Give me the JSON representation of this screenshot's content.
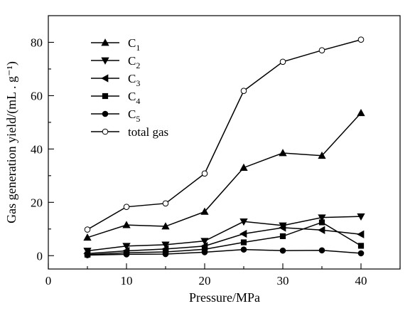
{
  "chart_data": {
    "type": "line",
    "xlabel": "Pressure/MPa",
    "ylabel": "Gas generation yield/(mL . g⁻¹)",
    "xlim": [
      0,
      45
    ],
    "ylim": [
      -5,
      90
    ],
    "xticks": [
      0,
      10,
      20,
      30,
      40
    ],
    "yticks": [
      0,
      20,
      40,
      60,
      80
    ],
    "grid": false,
    "legend_position": "top-left",
    "x": [
      5,
      10,
      15,
      20,
      25,
      30,
      35,
      40
    ],
    "series": [
      {
        "name": "C",
        "sub": "1",
        "marker": "triangle-up",
        "values": [
          6.8,
          11.5,
          11.0,
          16.5,
          33.0,
          38.5,
          37.5,
          53.5
        ]
      },
      {
        "name": "C",
        "sub": "2",
        "marker": "triangle-down",
        "values": [
          1.8,
          3.6,
          4.1,
          5.5,
          12.8,
          11.3,
          14.3,
          14.7
        ]
      },
      {
        "name": "C",
        "sub": "3",
        "marker": "triangle-left",
        "values": [
          0.8,
          1.8,
          2.5,
          3.6,
          8.2,
          10.5,
          9.6,
          8.0
        ]
      },
      {
        "name": "C",
        "sub": "4",
        "marker": "square",
        "values": [
          0.4,
          1.1,
          1.4,
          2.4,
          5.0,
          7.3,
          12.5,
          3.7
        ]
      },
      {
        "name": "C",
        "sub": "5",
        "marker": "circle",
        "values": [
          0.2,
          0.5,
          0.6,
          1.3,
          2.3,
          1.9,
          2.0,
          0.9
        ]
      },
      {
        "name": "total gas",
        "sub": "",
        "marker": "open-circle",
        "values": [
          9.8,
          18.3,
          19.6,
          30.8,
          61.8,
          72.7,
          77.0,
          81.0
        ]
      }
    ]
  }
}
